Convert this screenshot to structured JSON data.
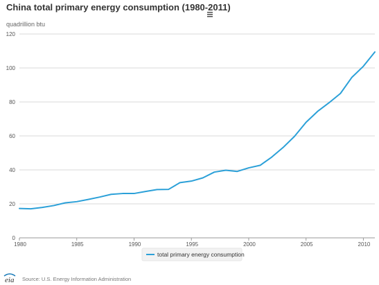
{
  "colors": {
    "series": "#2ba0d8",
    "logo_accent": "#1a7bb9"
  },
  "icons": {
    "menu": "hamburger-menu-icon",
    "logo": "eia-logo-icon"
  },
  "footer": {
    "source": "Source: U.S. Energy Information Administration",
    "logo_text": "eia"
  },
  "chart_data": {
    "type": "line",
    "title": "China total primary energy consumption (1980-2011)",
    "ylabel": "quadrillion btu",
    "xlabel": "",
    "x": [
      1980,
      1981,
      1982,
      1983,
      1984,
      1985,
      1986,
      1987,
      1988,
      1989,
      1990,
      1991,
      1992,
      1993,
      1994,
      1995,
      1996,
      1997,
      1998,
      1999,
      2000,
      2001,
      2002,
      2003,
      2004,
      2005,
      2006,
      2007,
      2008,
      2009,
      2010,
      2011
    ],
    "series": [
      {
        "name": "total primary energy consumption",
        "values": [
          17.3,
          17.1,
          17.9,
          19.0,
          20.6,
          21.3,
          22.6,
          24.0,
          25.6,
          26.1,
          26.1,
          27.3,
          28.4,
          28.5,
          32.5,
          33.4,
          35.3,
          38.7,
          39.8,
          39.1,
          41.2,
          42.7,
          47.5,
          53.2,
          59.8,
          68.0,
          74.4,
          79.5,
          85.0,
          94.5,
          101.0,
          109.4
        ]
      }
    ],
    "xlim": [
      1980,
      2011
    ],
    "ylim": [
      0,
      120
    ],
    "xticks": [
      1980,
      1985,
      1990,
      1995,
      2000,
      2005,
      2010
    ],
    "yticks": [
      0,
      20,
      40,
      60,
      80,
      100,
      120
    ],
    "grid": true,
    "legend_placement": "bottom-center"
  }
}
